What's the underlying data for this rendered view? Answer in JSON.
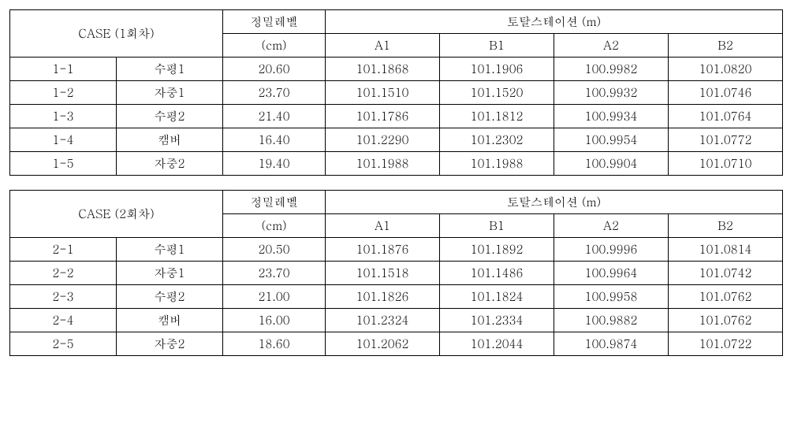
{
  "tables": [
    {
      "case_header": "CASE (1회차)",
      "level_header_line1": "정밀레벨",
      "level_header_line2": "(cm)",
      "ts_header": "토탈스테이션  (m)",
      "ts_columns": [
        "A1",
        "B1",
        "A2",
        "B2"
      ],
      "rows": [
        {
          "id": "1-1",
          "name": "수평1",
          "level": "20.60",
          "a1": "101.1868",
          "b1": "101.1906",
          "a2": "100.9982",
          "b2": "101.0820"
        },
        {
          "id": "1-2",
          "name": "자중1",
          "level": "23.70",
          "a1": "101.1510",
          "b1": "101.1520",
          "a2": "100.9932",
          "b2": "101.0746"
        },
        {
          "id": "1-3",
          "name": "수평2",
          "level": "21.40",
          "a1": "101.1786",
          "b1": "101.1812",
          "a2": "100.9934",
          "b2": "101.0764"
        },
        {
          "id": "1-4",
          "name": "캠버",
          "level": "16.40",
          "a1": "101.2290",
          "b1": "101.2302",
          "a2": "100.9954",
          "b2": "101.0772"
        },
        {
          "id": "1-5",
          "name": "자중2",
          "level": "19.40",
          "a1": "101.1988",
          "b1": "101.1988",
          "a2": "100.9904",
          "b2": "101.0710"
        }
      ]
    },
    {
      "case_header": "CASE (2회차)",
      "level_header_line1": "정밀레벨",
      "level_header_line2": "(cm)",
      "ts_header": "토탈스테이션  (m)",
      "ts_columns": [
        "A1",
        "B1",
        "A2",
        "B2"
      ],
      "rows": [
        {
          "id": "2-1",
          "name": "수평1",
          "level": "20.50",
          "a1": "101.1876",
          "b1": "101.1892",
          "a2": "100.9996",
          "b2": "101.0814"
        },
        {
          "id": "2-2",
          "name": "자중1",
          "level": "23.70",
          "a1": "101.1518",
          "b1": "101.1486",
          "a2": "100.9964",
          "b2": "101.0742"
        },
        {
          "id": "2-3",
          "name": "수평2",
          "level": "21.00",
          "a1": "101.1826",
          "b1": "101.1824",
          "a2": "100.9958",
          "b2": "101.0762"
        },
        {
          "id": "2-4",
          "name": "캠버",
          "level": "16.00",
          "a1": "101.2324",
          "b1": "101.2334",
          "a2": "100.9882",
          "b2": "101.0762"
        },
        {
          "id": "2-5",
          "name": "자중2",
          "level": "18.60",
          "a1": "101.2062",
          "b1": "101.2044",
          "a2": "100.9874",
          "b2": "101.0722"
        }
      ]
    }
  ]
}
